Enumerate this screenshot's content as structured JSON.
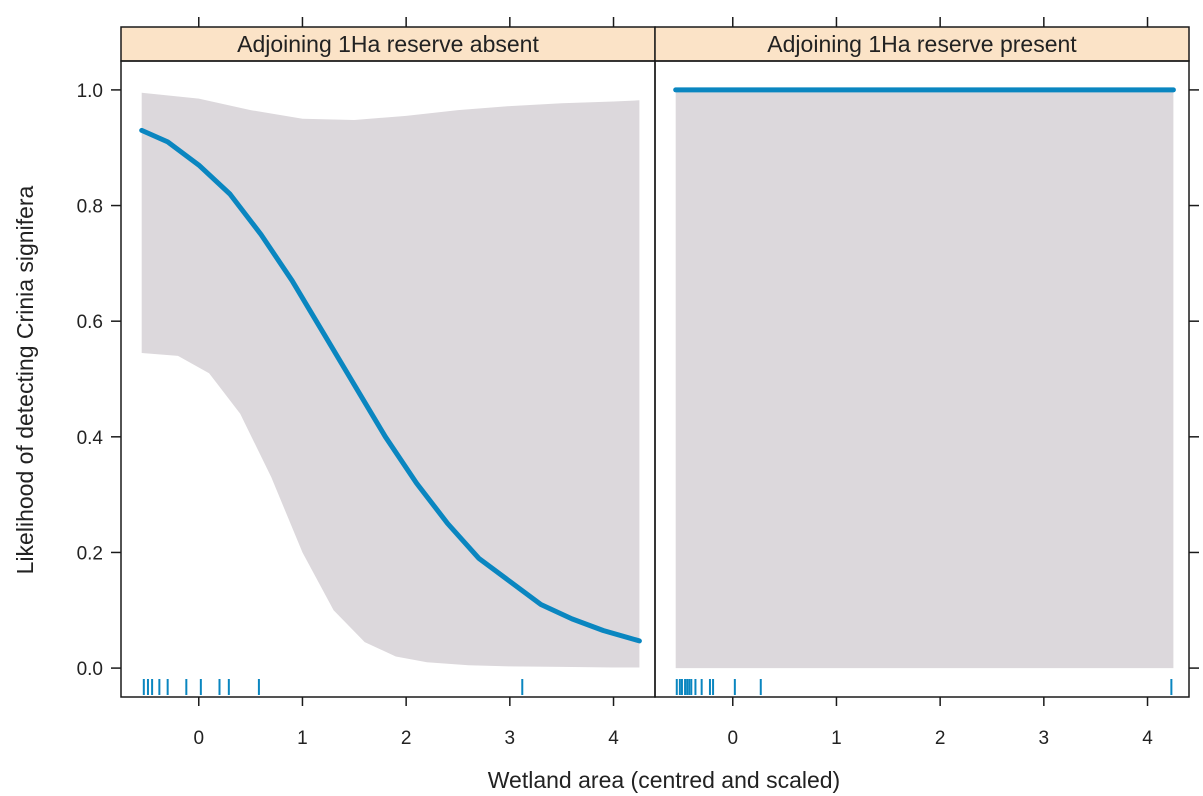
{
  "chart_data": {
    "type": "line",
    "ylabel": "Likelihood of detecting Crinia signifera",
    "xlabel": "Wetland area (centred and scaled)",
    "xlim": [
      -0.75,
      4.4
    ],
    "ylim": [
      -0.05,
      1.05
    ],
    "x_ticks": [
      0,
      1,
      2,
      3,
      4
    ],
    "y_ticks": [
      "0.0",
      "0.2",
      "0.4",
      "0.6",
      "0.8",
      "1.0"
    ],
    "panels": [
      {
        "title": "Adjoining 1Ha reserve absent",
        "line": {
          "x": [
            -0.55,
            -0.3,
            0,
            0.3,
            0.6,
            0.9,
            1.2,
            1.5,
            1.8,
            2.1,
            2.4,
            2.7,
            3.0,
            3.3,
            3.6,
            3.9,
            4.25
          ],
          "y": [
            0.93,
            0.91,
            0.87,
            0.82,
            0.75,
            0.67,
            0.58,
            0.49,
            0.4,
            0.32,
            0.25,
            0.19,
            0.15,
            0.11,
            0.085,
            0.065,
            0.047
          ]
        },
        "ci_upper": {
          "x": [
            -0.55,
            0,
            0.5,
            1.0,
            1.5,
            2.0,
            2.5,
            3.0,
            3.5,
            4.0,
            4.25
          ],
          "y": [
            0.995,
            0.985,
            0.965,
            0.95,
            0.948,
            0.955,
            0.965,
            0.972,
            0.977,
            0.98,
            0.982
          ]
        },
        "ci_lower": {
          "x": [
            -0.55,
            -0.2,
            0.1,
            0.4,
            0.7,
            1.0,
            1.3,
            1.6,
            1.9,
            2.2,
            2.6,
            3.0,
            3.5,
            4.0,
            4.25
          ],
          "y": [
            0.545,
            0.54,
            0.51,
            0.44,
            0.33,
            0.2,
            0.1,
            0.045,
            0.02,
            0.01,
            0.005,
            0.003,
            0.002,
            0.001,
            0.001
          ]
        },
        "rug": [
          -0.53,
          -0.49,
          -0.45,
          -0.38,
          -0.3,
          -0.12,
          0.02,
          0.2,
          0.29,
          0.58,
          3.12
        ]
      },
      {
        "title": "Adjoining 1Ha reserve present",
        "line": {
          "x": [
            -0.55,
            4.25
          ],
          "y": [
            1.0,
            1.0
          ]
        },
        "ci_upper": {
          "x": [
            -0.55,
            4.25
          ],
          "y": [
            1.0,
            1.0
          ]
        },
        "ci_lower": {
          "x": [
            -0.55,
            4.25
          ],
          "y": [
            0.0,
            0.0
          ]
        },
        "rug": [
          -0.54,
          -0.51,
          -0.49,
          -0.46,
          -0.44,
          -0.42,
          -0.4,
          -0.36,
          -0.3,
          -0.22,
          -0.19,
          0.02,
          0.27,
          4.23
        ]
      }
    ],
    "colors": {
      "line": "#0a86c0",
      "band": "#dcd8dc",
      "strip": "#fbe3c7",
      "rug": "#0a86c0",
      "frame": "#1a1a1a"
    }
  }
}
